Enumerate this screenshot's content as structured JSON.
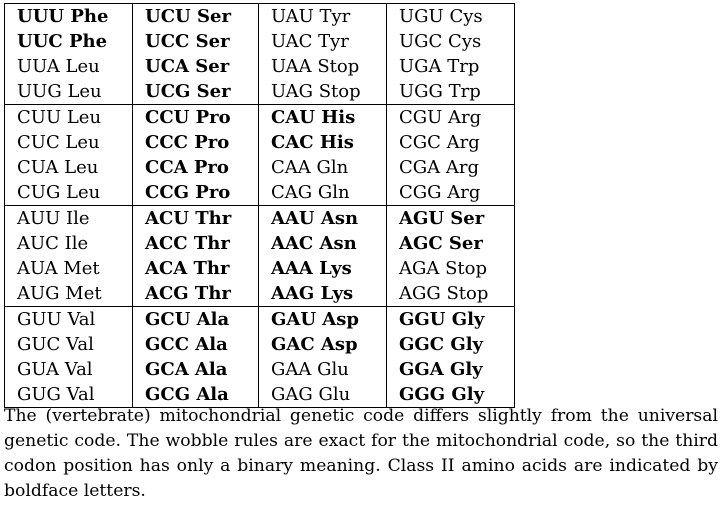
{
  "table": {
    "rows": [
      [
        {
          "t": "UUU Phe",
          "b": true
        },
        {
          "t": "UCU Ser",
          "b": true
        },
        {
          "t": "UAU Tyr",
          "b": false
        },
        {
          "t": "UGU Cys",
          "b": false
        }
      ],
      [
        {
          "t": "UUC Phe",
          "b": true
        },
        {
          "t": "UCC Ser",
          "b": true
        },
        {
          "t": "UAC Tyr",
          "b": false
        },
        {
          "t": "UGC Cys",
          "b": false
        }
      ],
      [
        {
          "t": "UUA Leu",
          "b": false
        },
        {
          "t": "UCA Ser",
          "b": true
        },
        {
          "t": "UAA Stop",
          "b": false
        },
        {
          "t": "UGA Trp",
          "b": false
        }
      ],
      [
        {
          "t": "UUG Leu",
          "b": false
        },
        {
          "t": "UCG Ser",
          "b": true
        },
        {
          "t": "UAG Stop",
          "b": false
        },
        {
          "t": "UGG Trp",
          "b": false
        }
      ],
      [
        {
          "t": "CUU Leu",
          "b": false
        },
        {
          "t": "CCU Pro",
          "b": true
        },
        {
          "t": "CAU His",
          "b": true
        },
        {
          "t": "CGU Arg",
          "b": false
        }
      ],
      [
        {
          "t": "CUC Leu",
          "b": false
        },
        {
          "t": "CCC Pro",
          "b": true
        },
        {
          "t": "CAC His",
          "b": true
        },
        {
          "t": "CGC Arg",
          "b": false
        }
      ],
      [
        {
          "t": "CUA Leu",
          "b": false
        },
        {
          "t": "CCA Pro",
          "b": true
        },
        {
          "t": "CAA Gln",
          "b": false
        },
        {
          "t": "CGA Arg",
          "b": false
        }
      ],
      [
        {
          "t": "CUG Leu",
          "b": false
        },
        {
          "t": "CCG Pro",
          "b": true
        },
        {
          "t": "CAG Gln",
          "b": false
        },
        {
          "t": "CGG Arg",
          "b": false
        }
      ],
      [
        {
          "t": "AUU Ile",
          "b": false
        },
        {
          "t": "ACU Thr",
          "b": true
        },
        {
          "t": "AAU Asn",
          "b": true
        },
        {
          "t": "AGU Ser",
          "b": true
        }
      ],
      [
        {
          "t": "AUC Ile",
          "b": false
        },
        {
          "t": "ACC Thr",
          "b": true
        },
        {
          "t": "AAC Asn",
          "b": true
        },
        {
          "t": "AGC Ser",
          "b": true
        }
      ],
      [
        {
          "t": "AUA Met",
          "b": false
        },
        {
          "t": "ACA Thr",
          "b": true
        },
        {
          "t": "AAA Lys",
          "b": true
        },
        {
          "t": "AGA Stop",
          "b": false
        }
      ],
      [
        {
          "t": "AUG Met",
          "b": false
        },
        {
          "t": "ACG Thr",
          "b": true
        },
        {
          "t": "AAG Lys",
          "b": true
        },
        {
          "t": "AGG Stop",
          "b": false
        }
      ],
      [
        {
          "t": "GUU Val",
          "b": false
        },
        {
          "t": "GCU Ala",
          "b": true
        },
        {
          "t": "GAU Asp",
          "b": true
        },
        {
          "t": "GGU Gly",
          "b": true
        }
      ],
      [
        {
          "t": "GUC Val",
          "b": false
        },
        {
          "t": "GCC Ala",
          "b": true
        },
        {
          "t": "GAC Asp",
          "b": true
        },
        {
          "t": "GGC Gly",
          "b": true
        }
      ],
      [
        {
          "t": "GUA Val",
          "b": false
        },
        {
          "t": "GCA Ala",
          "b": true
        },
        {
          "t": "GAA Glu",
          "b": false
        },
        {
          "t": "GGA Gly",
          "b": true
        }
      ],
      [
        {
          "t": "GUG Val",
          "b": false
        },
        {
          "t": "GCG Ala",
          "b": true
        },
        {
          "t": "GAG Glu",
          "b": false
        },
        {
          "t": "GGG Gly",
          "b": true
        }
      ]
    ]
  },
  "caption": "The (vertebrate) mitochondrial genetic code differs slightly from the universal genetic code.  The wobble rules are exact for the mitochondrial code, so the third codon position has only a binary meaning.  Class II amino acids are indicated by boldface letters."
}
